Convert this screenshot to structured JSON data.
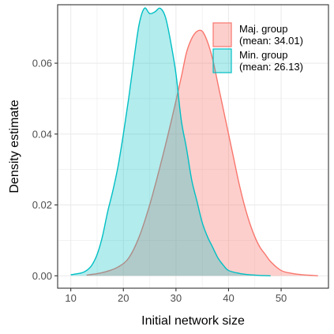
{
  "chart_data": {
    "type": "area",
    "xlabel": "Initial network size",
    "ylabel": "Density estimate",
    "xlim": [
      7.5,
      59
    ],
    "ylim": [
      -0.0035,
      0.0765
    ],
    "x_ticks": [
      10,
      20,
      30,
      40,
      50
    ],
    "x_tick_labels": [
      "10",
      "20",
      "30",
      "40",
      "50"
    ],
    "y_ticks": [
      0.0,
      0.02,
      0.04,
      0.06
    ],
    "y_tick_labels": [
      "0.00",
      "0.02",
      "0.04",
      "0.06"
    ],
    "grid": true,
    "legend_position": "top-right",
    "series": [
      {
        "name": "Maj. group\n(mean: 34.01)",
        "legend_lines": [
          "Maj. group",
          "(mean: 34.01)"
        ],
        "line_color": "#F8766D",
        "fill_color": "#F8766D",
        "fill_opacity": 0.35,
        "x": [
          13,
          15,
          17,
          19,
          21,
          23,
          25,
          27,
          29,
          31,
          32,
          33,
          34,
          35,
          36,
          37,
          38,
          39,
          40,
          41,
          42,
          43,
          44,
          45,
          46,
          47,
          48,
          50,
          52,
          54,
          56,
          57
        ],
        "y": [
          0.0002,
          0.0006,
          0.0013,
          0.0025,
          0.005,
          0.011,
          0.02,
          0.031,
          0.043,
          0.056,
          0.063,
          0.067,
          0.069,
          0.069,
          0.066,
          0.061,
          0.054,
          0.047,
          0.04,
          0.033,
          0.026,
          0.02,
          0.015,
          0.011,
          0.008,
          0.006,
          0.004,
          0.0015,
          0.0007,
          0.0003,
          0.0001,
          0.0
        ]
      },
      {
        "name": "Min. group\n(mean: 26.13)",
        "legend_lines": [
          "Min. group",
          "(mean: 26.13)"
        ],
        "line_color": "#00BFC4",
        "fill_color": "#00BFC4",
        "fill_opacity": 0.3,
        "x": [
          10,
          12,
          13,
          14,
          15,
          16,
          17,
          18,
          19,
          20,
          21,
          22,
          23,
          24,
          25,
          26,
          27,
          28,
          29,
          30,
          31,
          32,
          33,
          34,
          35,
          36,
          37,
          38,
          39,
          40,
          42,
          44,
          46,
          48
        ],
        "y": [
          0.0003,
          0.0008,
          0.0015,
          0.003,
          0.006,
          0.011,
          0.018,
          0.024,
          0.031,
          0.04,
          0.05,
          0.061,
          0.071,
          0.0755,
          0.074,
          0.0745,
          0.0755,
          0.073,
          0.066,
          0.057,
          0.044,
          0.036,
          0.027,
          0.021,
          0.015,
          0.011,
          0.008,
          0.005,
          0.003,
          0.0015,
          0.0007,
          0.0003,
          0.0001,
          0.0
        ]
      }
    ]
  }
}
